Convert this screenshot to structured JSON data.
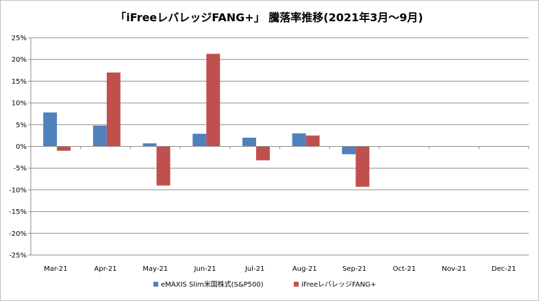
{
  "chart_data": {
    "type": "bar",
    "title": "「iFreeレバレッジFANG+」 騰落率推移(2021年3月～9月)",
    "categories": [
      "Mar-21",
      "Apr-21",
      "May-21",
      "Jun-21",
      "Jul-21",
      "Aug-21",
      "Sep-21",
      "Oct-21",
      "Nov-21",
      "Dec-21"
    ],
    "series": [
      {
        "name": "eMAXIS Slim米国株式(S&P500)",
        "color": "#4f81bd",
        "values": [
          7.8,
          4.8,
          0.7,
          2.9,
          2.0,
          3.0,
          -1.8,
          null,
          null,
          null
        ]
      },
      {
        "name": "iFreeレバレッジFANG+",
        "color": "#c0504d",
        "values": [
          -1.0,
          17.0,
          -9.0,
          21.3,
          -3.2,
          2.5,
          -9.3,
          null,
          null,
          null
        ]
      }
    ],
    "ylim": [
      -25,
      25
    ],
    "ytick_step": 5,
    "ytick_labels": [
      "25%",
      "20%",
      "15%",
      "10%",
      "5%",
      "0%",
      "-5%",
      "-10%",
      "-15%",
      "-20%",
      "-25%"
    ],
    "xlabel": "",
    "ylabel": "",
    "grid": true,
    "legend_position": "bottom"
  }
}
